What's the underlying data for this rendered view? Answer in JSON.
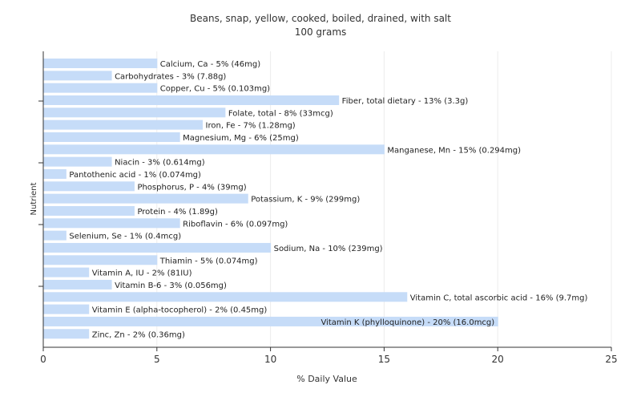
{
  "chart_data": {
    "type": "bar",
    "orientation": "horizontal",
    "title": "Beans, snap, yellow, cooked, boiled, drained, with salt",
    "subtitle": "100 grams",
    "xlabel": "% Daily Value",
    "ylabel": "Nutrient",
    "xlim": [
      0,
      25
    ],
    "xticks": [
      0,
      5,
      10,
      15,
      20,
      25
    ],
    "grid": true,
    "bar_color": "#c6dcf8",
    "categories": [
      "Calcium, Ca",
      "Carbohydrates",
      "Copper, Cu",
      "Fiber, total dietary",
      "Folate, total",
      "Iron, Fe",
      "Magnesium, Mg",
      "Manganese, Mn",
      "Niacin",
      "Pantothenic acid",
      "Phosphorus, P",
      "Potassium, K",
      "Protein",
      "Riboflavin",
      "Selenium, Se",
      "Sodium, Na",
      "Thiamin",
      "Vitamin A, IU",
      "Vitamin B-6",
      "Vitamin C, total ascorbic acid",
      "Vitamin E (alpha-tocopherol)",
      "Vitamin K (phylloquinone)",
      "Zinc, Zn"
    ],
    "values": [
      5,
      3,
      5,
      13,
      8,
      7,
      6,
      15,
      3,
      1,
      4,
      9,
      4,
      6,
      1,
      10,
      5,
      2,
      3,
      16,
      2,
      20,
      2
    ],
    "labels": [
      "Calcium, Ca - 5% (46mg)",
      "Carbohydrates - 3% (7.88g)",
      "Copper, Cu - 5% (0.103mg)",
      "Fiber, total dietary - 13% (3.3g)",
      "Folate, total - 8% (33mcg)",
      "Iron, Fe - 7% (1.28mg)",
      "Magnesium, Mg - 6% (25mg)",
      "Manganese, Mn - 15% (0.294mg)",
      "Niacin - 3% (0.614mg)",
      "Pantothenic acid - 1% (0.074mg)",
      "Phosphorus, P - 4% (39mg)",
      "Potassium, K - 9% (299mg)",
      "Protein - 4% (1.89g)",
      "Riboflavin - 6% (0.097mg)",
      "Selenium, Se - 1% (0.4mcg)",
      "Sodium, Na - 10% (239mg)",
      "Thiamin - 5% (0.074mg)",
      "Vitamin A, IU - 2% (81IU)",
      "Vitamin B-6 - 3% (0.056mg)",
      "Vitamin C, total ascorbic acid - 16% (9.7mg)",
      "Vitamin E (alpha-tocopherol) - 2% (0.45mg)",
      "Vitamin K (phylloquinone) - 20% (16.0mcg)",
      "Zinc, Zn - 2% (0.36mg)"
    ]
  }
}
